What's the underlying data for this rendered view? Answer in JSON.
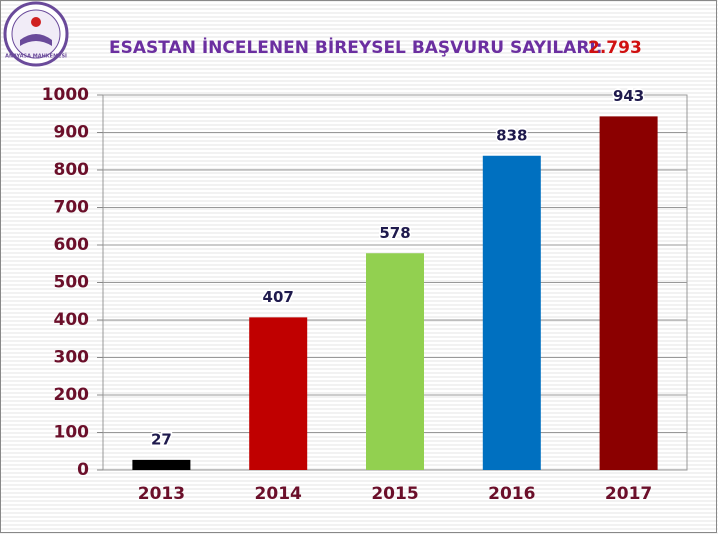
{
  "logo_text": "ANAYASA MAHKEMESİ",
  "chart_data": {
    "type": "bar",
    "title": "ESASTAN İNCELENEN BİREYSEL BAŞVURU SAYILARI:",
    "title_total": "2.793",
    "categories": [
      "2013",
      "2014",
      "2015",
      "2016",
      "2017"
    ],
    "values": [
      27,
      407,
      578,
      838,
      943
    ],
    "colors": [
      "#000000",
      "#c00000",
      "#92d050",
      "#0070c0",
      "#8b0000"
    ],
    "ylim": [
      0,
      1000
    ],
    "yticks": [
      0,
      100,
      200,
      300,
      400,
      500,
      600,
      700,
      800,
      900,
      1000
    ],
    "grid": true
  }
}
